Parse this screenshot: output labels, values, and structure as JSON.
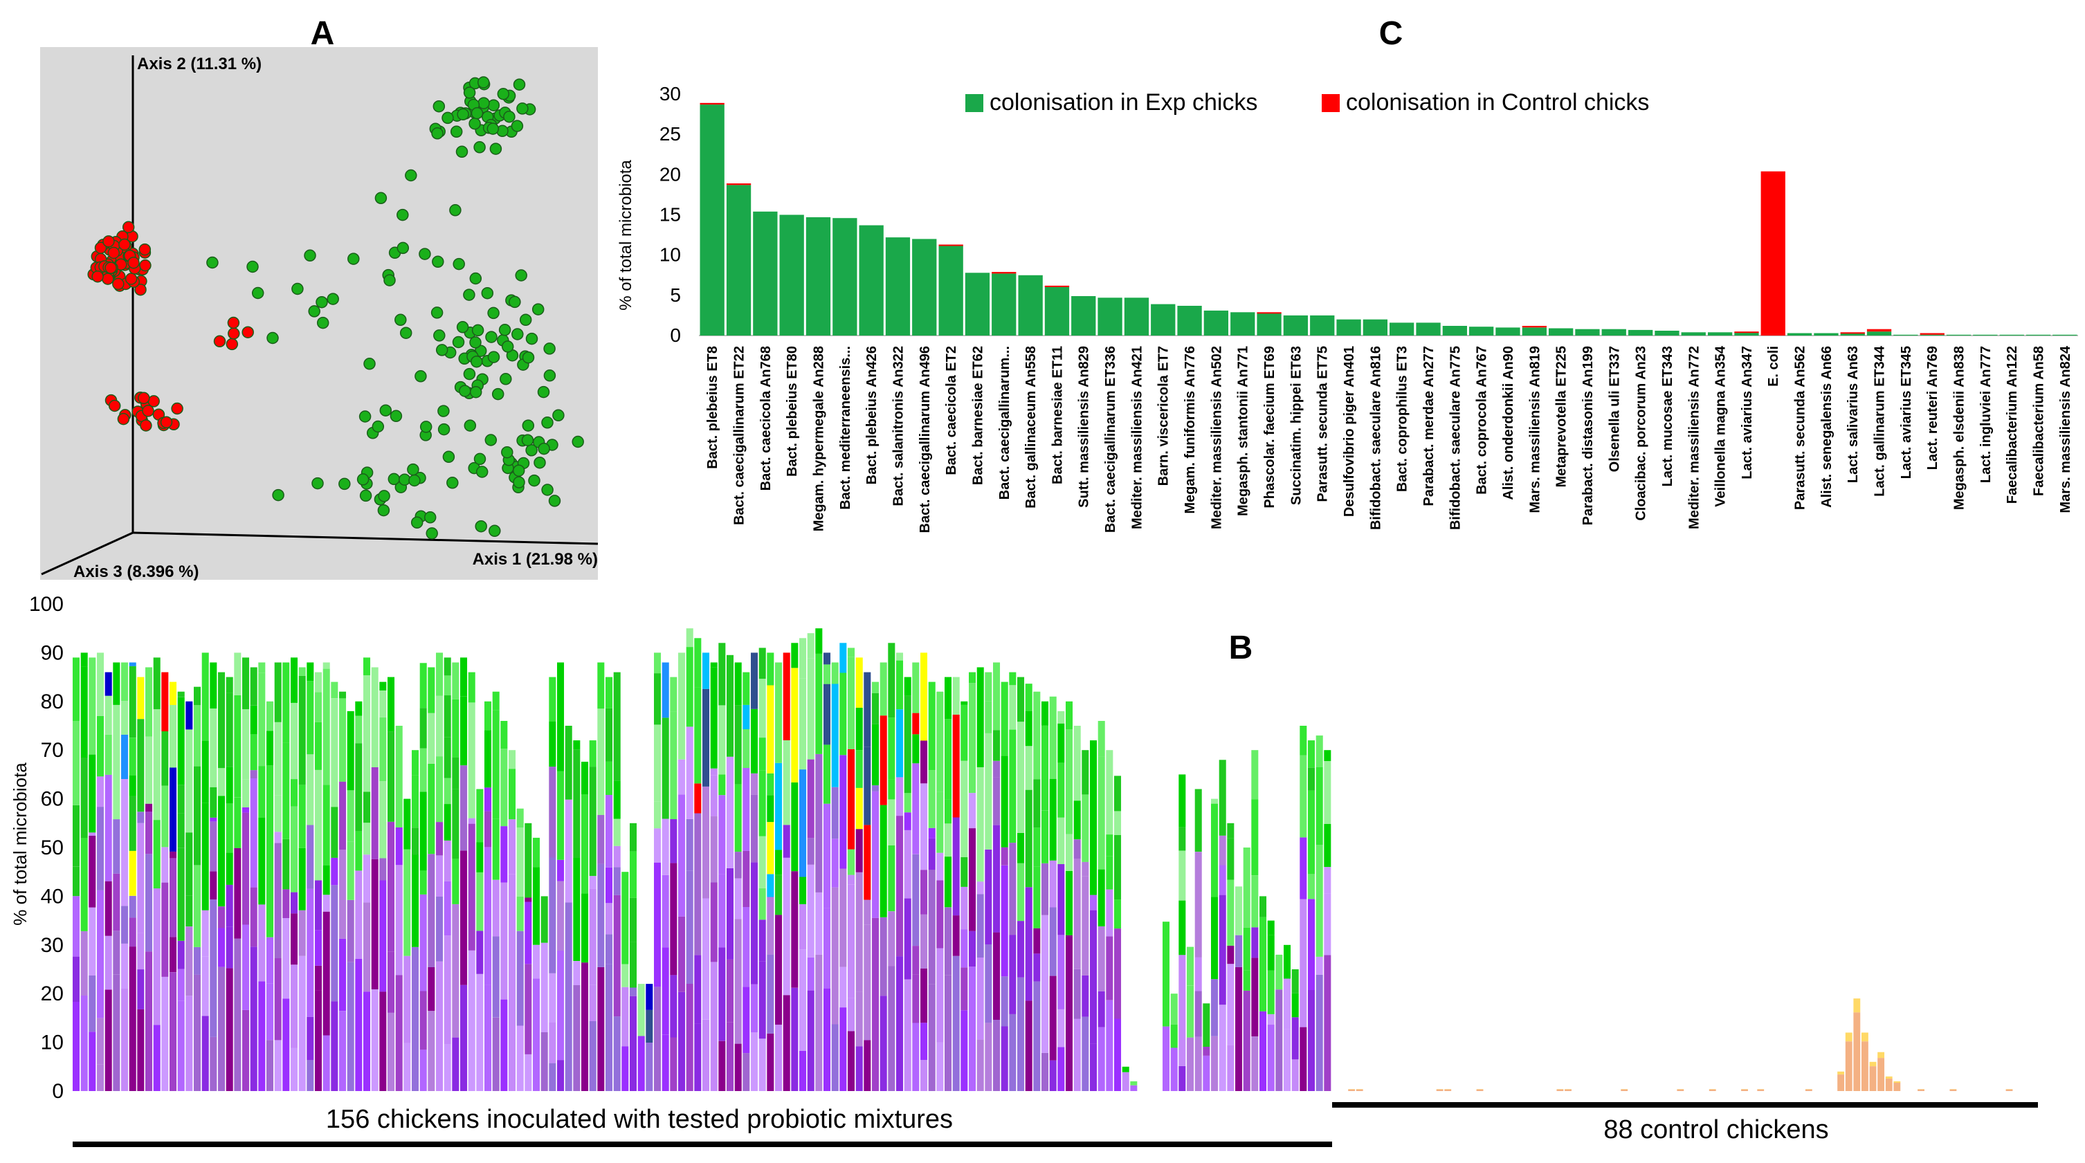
{
  "panel_labels": [
    "A",
    "C",
    "B"
  ],
  "chart_data": [
    {
      "panel": "A",
      "type": "scatter",
      "axes": [
        "Axis 2 (11.31 %)",
        "Axis 1 (21.98 %)",
        "Axis 3 (8.396 %)"
      ],
      "background": "#d9d9d9",
      "groups": [
        {
          "color": "#ff0000",
          "count": 90,
          "note_color_meaning": "control"
        },
        {
          "color": "#1ab01a",
          "count": 180
        }
      ],
      "clusters": [
        {
          "group": 0,
          "cx": 0.145,
          "cy": 0.4,
          "sx": 0.022,
          "sy": 0.022,
          "n": 66
        },
        {
          "group": 0,
          "cx": 0.19,
          "cy": 0.69,
          "sx": 0.035,
          "sy": 0.015,
          "n": 19
        },
        {
          "group": 0,
          "cx": 0.37,
          "cy": 0.53,
          "sx": 0.04,
          "sy": 0.02,
          "n": 5
        },
        {
          "group": 1,
          "cx": 0.8,
          "cy": 0.13,
          "sx": 0.04,
          "sy": 0.03,
          "n": 45
        },
        {
          "group": 1,
          "cx": 0.81,
          "cy": 0.56,
          "sx": 0.06,
          "sy": 0.06,
          "n": 50
        },
        {
          "group": 1,
          "cx": 0.86,
          "cy": 0.77,
          "sx": 0.04,
          "sy": 0.05,
          "n": 30
        },
        {
          "group": 1,
          "cx": 0.62,
          "cy": 0.8,
          "sx": 0.08,
          "sy": 0.06,
          "n": 30
        },
        {
          "group": 1,
          "cx": 0.56,
          "cy": 0.44,
          "sx": 0.1,
          "sy": 0.08,
          "n": 25
        }
      ]
    },
    {
      "panel": "C",
      "type": "bar",
      "ylabel": "% of total microbiota",
      "ylim": [
        0,
        30
      ],
      "yticks": [
        0,
        5,
        10,
        15,
        20,
        25,
        30
      ],
      "legend": [
        {
          "label": "colonisation in Exp chicks",
          "color": "#1aa84a"
        },
        {
          "label": "colonisation in Control chicks",
          "color": "#ff0000"
        }
      ],
      "categories": [
        "Bact. plebeius ET8",
        "Bact. caecigallinarum ET22",
        "Bact. caecicola An768",
        "Bact. plebeius ET80",
        "Megam. hypermegale An288",
        "Bact. mediterraneensis...",
        "Bact. plebeius An426",
        "Bact. salanitronis An322",
        "Bact. caecigallinarum An496",
        "Bact. caecicola ET2",
        "Bact. barnesiae ET62",
        "Bact. caecigallinarum...",
        "Bact. gallinaceum An558",
        "Bact. barnesiae ET11",
        "Sutt. massiliensis An829",
        "Bact. caecigallinarum ET336",
        "Mediter. massiliensis An421",
        "Barn. viscericola ET7",
        "Megam. funiformis An776",
        "Mediter. massiliensis An502",
        "Megasph. stantonii An771",
        "Phascolar. faecium ET69",
        "Succinatim. hippei ET63",
        "Parasutt. secunda ET75",
        "Desulfovibrio piger An401",
        "Bifidobact. saeculare An816",
        "Bact. coprophilus ET3",
        "Parabact. merdae An277",
        "Bifidobact. saeculare An775",
        "Bact. coprocola An767",
        "Alist. onderdonkii An90",
        "Mars. massiliensis An819",
        "Metaprevotella ET225",
        "Parabact. distasonis An199",
        "Olsenella uli ET337",
        "Cloacibac. porcorum An23",
        "Lact. mucosae ET343",
        "Mediter. massiliensis An772",
        "Veillonella magna An354",
        "Lact. aviarius An347",
        "E. coli",
        "Parasutt. secunda An562",
        "Alist. senegalensis An66",
        "Lact. salivarius An63",
        "Lact. gallinarum ET344",
        "Lact. aviarius ET345",
        "Lact. reuteri An769",
        "Megasph. elsdenii An838",
        "Lact. ingluviei An777",
        "Faecalibacterium An122",
        "Faecalibacterium An58",
        "Mars. massiliensis An824"
      ],
      "series": [
        {
          "name": "colonisation in Exp chicks",
          "values": [
            28.7,
            18.7,
            15.4,
            15.0,
            14.7,
            14.6,
            13.7,
            12.2,
            12.0,
            11.2,
            7.8,
            7.7,
            7.5,
            6.1,
            4.9,
            4.7,
            4.7,
            3.9,
            3.7,
            3.1,
            2.9,
            2.8,
            2.5,
            2.5,
            2.0,
            2.0,
            1.6,
            1.6,
            1.2,
            1.1,
            1.0,
            1.0,
            0.9,
            0.8,
            0.8,
            0.7,
            0.6,
            0.4,
            0.4,
            0.4,
            0.0,
            0.3,
            0.3,
            0.3,
            0.5,
            0.1,
            0.1,
            0.1,
            0.1,
            0.1,
            0.1,
            0.1
          ]
        },
        {
          "name": "colonisation in Control chicks",
          "values": [
            0.2,
            0.2,
            0,
            0,
            0,
            0,
            0,
            0,
            0,
            0.1,
            0,
            0.2,
            0,
            0.1,
            0,
            0,
            0,
            0,
            0,
            0,
            0,
            0.1,
            0,
            0,
            0,
            0,
            0,
            0,
            0,
            0,
            0,
            0.2,
            0,
            0,
            0,
            0,
            0,
            0,
            0,
            0.1,
            20.4,
            0,
            0,
            0.1,
            0.3,
            0,
            0.2,
            0,
            0,
            0,
            0,
            0
          ]
        }
      ]
    },
    {
      "panel": "B",
      "type": "bar",
      "stacked": true,
      "ylabel": "% of total microbiota",
      "ylim": [
        0,
        100
      ],
      "yticks": [
        0,
        10,
        20,
        30,
        40,
        50,
        60,
        70,
        80,
        90,
        100
      ],
      "groups": [
        {
          "label": "156 chickens inoculated with tested probiotic mixtures",
          "count": 156
        },
        {
          "label": "88 control chickens",
          "count": 88
        }
      ],
      "palette": {
        "violet": [
          "#8a2be2",
          "#9b30ff",
          "#b266ff",
          "#c58af9",
          "#a040c8",
          "#8b008b",
          "#a066d0",
          "#cc99ff",
          "#9370db",
          "#b57edc"
        ],
        "green": [
          "#00d100",
          "#33e633",
          "#66ee66",
          "#1fc91f",
          "#99f299"
        ],
        "accent": [
          "#ffff00",
          "#0000cd",
          "#1e90ff",
          "#ff0000",
          "#00bfff",
          "#2f4f8f"
        ],
        "orange": [
          "#f4b183",
          "#ffd966"
        ]
      },
      "exp_totals": [
        89,
        90,
        89,
        90,
        86,
        88,
        88,
        88,
        85,
        87,
        89,
        86,
        84,
        82,
        80,
        83,
        90,
        88,
        86,
        85,
        90,
        89,
        87,
        88,
        80,
        88,
        88,
        89,
        87,
        88,
        86,
        88,
        84,
        82,
        78,
        80,
        89,
        87,
        84,
        85,
        75,
        60,
        70,
        88,
        87,
        90,
        89,
        88,
        89,
        86,
        62,
        80,
        82,
        76,
        70,
        58,
        55,
        52,
        40,
        85,
        88,
        75,
        72,
        68,
        72,
        88,
        85,
        86,
        45,
        55,
        22,
        22,
        90,
        88,
        85,
        90,
        95,
        93,
        90,
        88,
        92,
        90,
        88,
        86,
        90,
        91,
        90,
        88,
        90,
        92,
        93,
        94,
        95,
        90,
        88,
        92,
        91,
        89,
        86,
        84,
        88,
        92,
        90,
        85,
        88,
        90,
        84,
        82,
        85,
        85,
        80,
        86,
        87,
        86,
        88,
        84,
        86,
        85,
        84,
        82,
        80,
        81,
        78,
        80,
        75,
        70,
        72,
        76,
        70,
        65,
        5,
        2,
        0,
        0,
        0,
        35,
        20,
        65,
        30,
        62,
        18,
        60,
        68,
        55,
        42,
        50,
        70,
        40,
        35,
        28,
        30,
        25,
        75,
        72,
        73,
        70
      ],
      "ctrl_peaks": [
        {
          "index": 63,
          "value": 4
        },
        {
          "index": 64,
          "value": 12
        },
        {
          "index": 65,
          "value": 19
        },
        {
          "index": 66,
          "value": 12
        },
        {
          "index": 67,
          "value": 6
        },
        {
          "index": 68,
          "value": 8
        },
        {
          "index": 69,
          "value": 3
        },
        {
          "index": 70,
          "value": 2
        }
      ]
    }
  ]
}
